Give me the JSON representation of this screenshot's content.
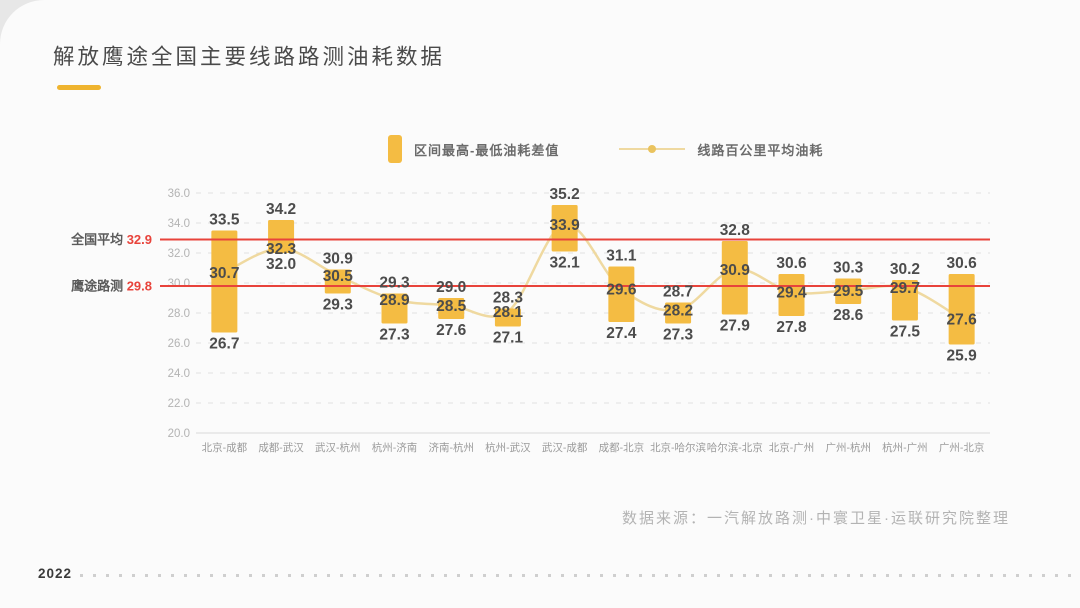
{
  "page": {
    "title": "解放鹰途全国主要线路路测油耗数据",
    "source_note": "数据来源：一汽解放路测·中寰卫星·运联研究院整理",
    "footer_year": "2022"
  },
  "colors": {
    "bar": "#F4BC43",
    "line": "#EFD9A0",
    "dot": "#EAC35E",
    "reference": "#E8433B",
    "accent": "#EFB42F",
    "grid": "#e2e2e2",
    "axis": "#d8d8d8",
    "data_label": "#4c4c4c",
    "x_label": "#9a9a9a",
    "y_label": "#b3b3b3",
    "annotation_text": "#5a5a5a"
  },
  "chart_data": {
    "type": "bar",
    "subtype": "range-bar-with-line",
    "title": "解放鹰途全国主要线路路测油耗数据",
    "categories": [
      "北京-成都",
      "成都-武汉",
      "武汉-杭州",
      "杭州-济南",
      "济南-杭州",
      "杭州-武汉",
      "武汉-成都",
      "成都-北京",
      "北京-哈尔滨",
      "哈尔滨-北京",
      "北京-广州",
      "广州-杭州",
      "杭州-广州",
      "广州-北京"
    ],
    "series": [
      {
        "name": "区间最高-最低油耗差值",
        "type": "range_bar",
        "max": [
          33.5,
          34.2,
          30.9,
          29.3,
          29.0,
          28.3,
          35.2,
          31.1,
          28.7,
          32.8,
          30.6,
          30.3,
          30.2,
          30.6
        ],
        "min": [
          26.7,
          32.0,
          29.3,
          27.3,
          27.6,
          27.1,
          32.1,
          27.4,
          27.3,
          27.9,
          27.8,
          28.6,
          27.5,
          25.9
        ]
      },
      {
        "name": "线路百公里平均油耗",
        "type": "line",
        "values": [
          30.7,
          32.3,
          30.5,
          28.9,
          28.5,
          28.1,
          33.9,
          29.6,
          28.2,
          30.9,
          29.4,
          29.5,
          29.7,
          27.6
        ]
      }
    ],
    "reference_lines": [
      {
        "label": "全国平均",
        "value": 32.9
      },
      {
        "label": "鹰途路测",
        "value": 29.8
      }
    ],
    "ylim": [
      20.0,
      36.0
    ],
    "ytick_step": 2.0,
    "grid": "dashed-horizontal",
    "legend_position": "top"
  }
}
